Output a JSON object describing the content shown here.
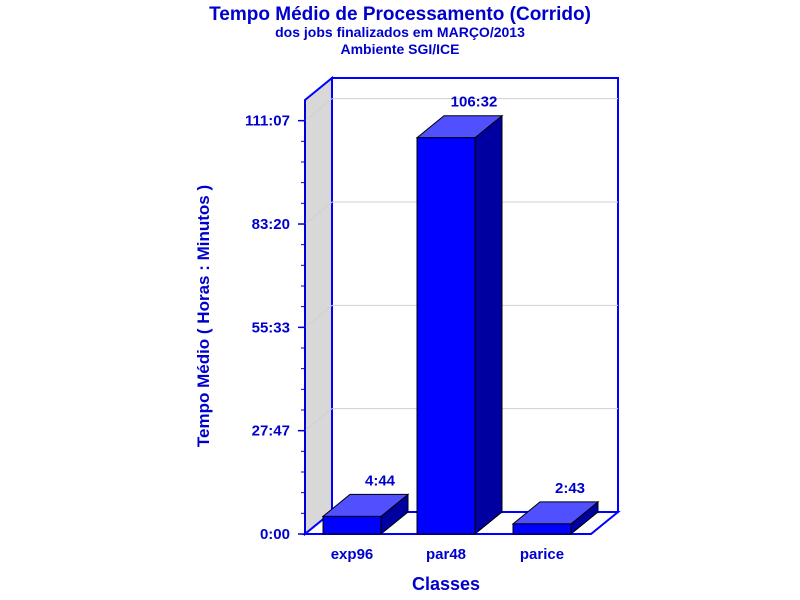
{
  "chart_data": {
    "type": "bar",
    "title": "Tempo Médio de Processamento (Corrido)",
    "subtitle": "dos jobs finalizados em MARÇO/2013",
    "subtitle2": "Ambiente SGI/ICE",
    "xlabel": "Classes",
    "ylabel": "Tempo Médio ( Horas : Minutos )",
    "categories": [
      "exp96",
      "par48",
      "parice"
    ],
    "values": [
      4.733,
      106.533,
      2.717
    ],
    "data_labels": [
      "4:44",
      "106:32",
      "2:43"
    ],
    "yticks": [
      0,
      27.78,
      55.55,
      83.33,
      111.12
    ],
    "ytick_labels": [
      "0:00",
      "27:47",
      "55:33",
      "83:20",
      "111:07"
    ],
    "ylim": [
      0,
      116.67
    ],
    "grid": true,
    "colors": {
      "bar_front": "#0000ff",
      "bar_top": "#5050ff",
      "bar_side": "#0000a0",
      "text": "#0000cc",
      "wall": "#d8d8d8",
      "frame": "#0000ff",
      "grid": "#d0d0d0"
    }
  }
}
